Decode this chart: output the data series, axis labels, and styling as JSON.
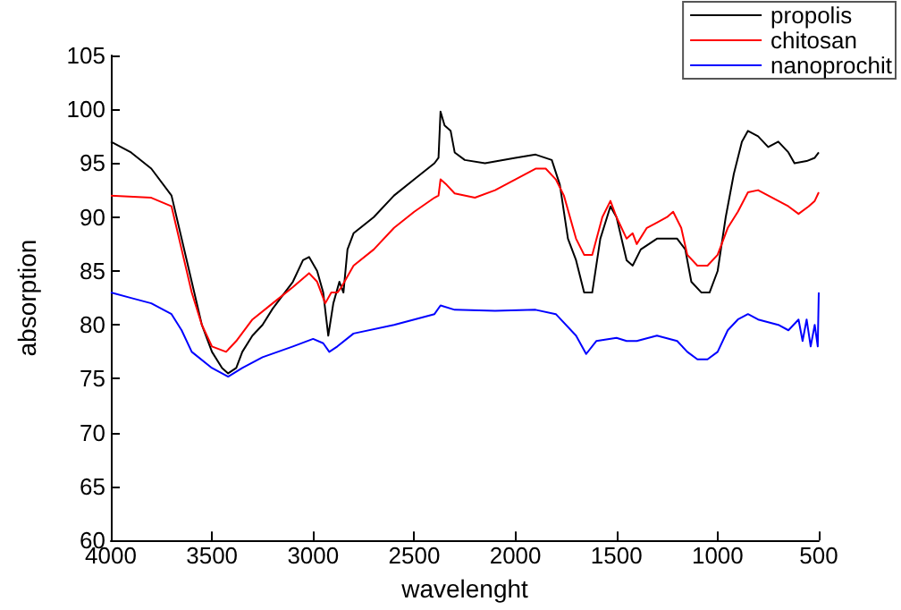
{
  "chart_data": {
    "type": "line",
    "xlabel": "wavelenght",
    "ylabel": "absorption",
    "xlim": [
      4000,
      500
    ],
    "ylim": [
      60,
      105
    ],
    "xticks": [
      4000,
      3500,
      3000,
      2500,
      2000,
      1500,
      1000,
      500
    ],
    "yticks": [
      60,
      65,
      70,
      75,
      80,
      85,
      90,
      95,
      100,
      105
    ],
    "grid": false,
    "legend": "top right",
    "marker": "none",
    "line_style": "solid",
    "series": [
      {
        "name": "propolis",
        "color": "#000000",
        "x": [
          4000,
          3900,
          3800,
          3700,
          3650,
          3600,
          3550,
          3500,
          3450,
          3420,
          3380,
          3350,
          3300,
          3250,
          3200,
          3100,
          3050,
          3020,
          2980,
          2950,
          2925,
          2900,
          2870,
          2850,
          2830,
          2800,
          2700,
          2600,
          2500,
          2400,
          2380,
          2370,
          2350,
          2320,
          2300,
          2250,
          2150,
          2000,
          1900,
          1820,
          1780,
          1740,
          1700,
          1660,
          1620,
          1580,
          1530,
          1500,
          1450,
          1420,
          1380,
          1300,
          1200,
          1160,
          1130,
          1080,
          1040,
          1000,
          960,
          920,
          880,
          850,
          800,
          750,
          700,
          650,
          620,
          560,
          520,
          500
        ],
        "values": [
          97,
          96,
          94.5,
          92,
          88,
          84,
          80,
          77.5,
          76,
          75.5,
          76,
          77.5,
          79,
          80,
          81.5,
          84,
          86,
          86.3,
          85,
          83,
          79,
          82,
          84,
          83,
          87,
          88.5,
          90,
          92,
          93.5,
          95,
          95.5,
          99.8,
          98.5,
          98,
          96,
          95.3,
          95,
          95.5,
          95.8,
          95.3,
          93,
          88,
          86,
          83,
          83,
          88,
          91,
          90,
          86,
          85.5,
          87,
          88,
          88,
          87,
          84,
          83,
          83,
          85,
          90,
          94,
          97,
          98,
          97.5,
          96.5,
          97,
          96,
          95,
          95.2,
          95.5,
          96
        ]
      },
      {
        "name": "chitosan",
        "color": "#ff0000",
        "x": [
          4000,
          3800,
          3700,
          3650,
          3600,
          3550,
          3500,
          3430,
          3380,
          3300,
          3200,
          3100,
          3020,
          2980,
          2940,
          2910,
          2880,
          2860,
          2800,
          2700,
          2600,
          2500,
          2400,
          2380,
          2370,
          2340,
          2300,
          2200,
          2100,
          2000,
          1900,
          1850,
          1800,
          1760,
          1700,
          1660,
          1620,
          1570,
          1530,
          1500,
          1450,
          1420,
          1400,
          1350,
          1300,
          1250,
          1220,
          1180,
          1150,
          1100,
          1050,
          1000,
          950,
          900,
          850,
          800,
          700,
          650,
          600,
          550,
          520,
          500
        ],
        "values": [
          92,
          91.8,
          91,
          87,
          83,
          80,
          78,
          77.5,
          78.5,
          80.5,
          82,
          83.5,
          84.8,
          84,
          82,
          83,
          83,
          83.5,
          85.5,
          87,
          89,
          90.5,
          91.8,
          92,
          93.5,
          93,
          92.2,
          91.8,
          92.5,
          93.5,
          94.5,
          94.5,
          93.5,
          92,
          88,
          86.5,
          86.5,
          90,
          91.5,
          90,
          88,
          88.5,
          87.5,
          89,
          89.5,
          90,
          90.5,
          89,
          86.5,
          85.5,
          85.5,
          86.5,
          89,
          90.5,
          92.3,
          92.5,
          91.5,
          91,
          90.3,
          91,
          91.5,
          92.3
        ]
      },
      {
        "name": "nanoprochit",
        "color": "#0000ff",
        "x": [
          4000,
          3900,
          3800,
          3700,
          3650,
          3600,
          3500,
          3420,
          3350,
          3250,
          3100,
          3000,
          2950,
          2920,
          2880,
          2800,
          2600,
          2400,
          2370,
          2300,
          2100,
          1900,
          1800,
          1700,
          1650,
          1600,
          1500,
          1450,
          1400,
          1300,
          1200,
          1150,
          1100,
          1050,
          1000,
          950,
          900,
          850,
          800,
          700,
          650,
          600,
          580,
          560,
          540,
          520,
          505,
          500
        ],
        "values": [
          83,
          82.5,
          82,
          81,
          79.5,
          77.5,
          76,
          75.2,
          76,
          77,
          78,
          78.7,
          78.3,
          77.5,
          78,
          79.2,
          80,
          81,
          81.8,
          81.4,
          81.3,
          81.4,
          81,
          79,
          77.3,
          78.5,
          78.8,
          78.5,
          78.5,
          79,
          78.5,
          77.5,
          76.8,
          76.8,
          77.5,
          79.5,
          80.5,
          81,
          80.5,
          80,
          79.5,
          80.5,
          78.5,
          80.5,
          78,
          80,
          78,
          83
        ]
      }
    ]
  }
}
